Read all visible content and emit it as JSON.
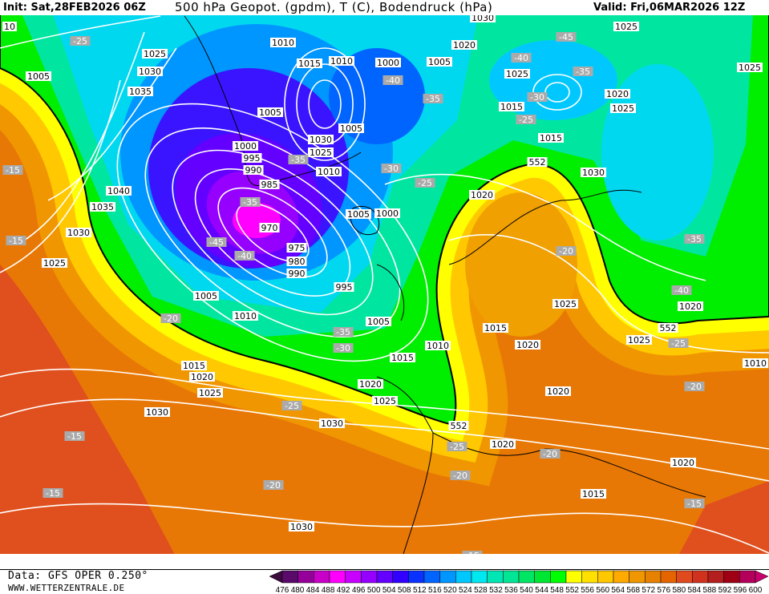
{
  "header": {
    "init": "Init: Sat,28FEB2026 06Z",
    "title": "500 hPa Geopot. (gpdm), T (C), Bodendruck (hPa)",
    "valid": "Valid: Fri,06MAR2026 12Z"
  },
  "footer": {
    "source": "Data: GFS OPER 0.250°",
    "site": "WWW.WETTERZENTRALE.DE"
  },
  "legend": {
    "ticks": [
      "476",
      "480",
      "484",
      "488",
      "492",
      "496",
      "500",
      "504",
      "508",
      "512",
      "516",
      "520",
      "524",
      "528",
      "532",
      "536",
      "540",
      "544",
      "548",
      "552",
      "556",
      "560",
      "564",
      "568",
      "572",
      "576",
      "580",
      "584",
      "588",
      "592",
      "596",
      "600"
    ],
    "colors": [
      "#3c0a3c",
      "#5a0a6a",
      "#96009a",
      "#c800c8",
      "#ff00ff",
      "#c800ff",
      "#9600ff",
      "#6400ff",
      "#3200ff",
      "#0a32ff",
      "#0064ff",
      "#0096ff",
      "#00c8ff",
      "#00e8f0",
      "#00e6b4",
      "#00e696",
      "#00e664",
      "#00e632",
      "#00ff00",
      "#ffff00",
      "#ffe000",
      "#ffc800",
      "#ffaa00",
      "#f09600",
      "#e68200",
      "#e66400",
      "#e04a1e",
      "#d0321e",
      "#b41e1e",
      "#a00014",
      "#b4005a",
      "#c8006e"
    ]
  },
  "map": {
    "colors": {
      "base": "#e87806",
      "sw": "#e0501e",
      "gold": "#ffc800",
      "yellow": "#ffff00",
      "green": "#00ee00",
      "teal": "#00e6a0",
      "cyan": "#00d8f0",
      "lightblue": "#0096ff",
      "blue": "#3a14ff",
      "purple": "#9600ff",
      "magenta": "#ff00ff",
      "isobar": "#ffffff",
      "isotherm": "#aaaaaa"
    },
    "pressure_labels": [
      "10",
      "1025",
      "1030",
      "1005",
      "1035",
      "1040",
      "1035",
      "1030",
      "1025",
      "1005",
      "1010",
      "1015",
      "1020",
      "1025",
      "1030",
      "1030",
      "1020",
      "1025",
      "1015",
      "1010",
      "1005",
      "995",
      "990",
      "980",
      "975",
      "970",
      "985",
      "990",
      "995",
      "1000",
      "1005",
      "1010",
      "1015",
      "1010",
      "1000",
      "1005",
      "1020",
      "1030",
      "1025",
      "1025",
      "1015",
      "1015",
      "1020",
      "1025",
      "1025",
      "1030",
      "1020",
      "1005",
      "1000",
      "1005",
      "1030",
      "1025",
      "1010",
      "1025",
      "1015",
      "1020",
      "1025",
      "1020",
      "1020",
      "1020",
      "1020",
      "1015",
      "1030",
      "1025",
      "1010"
    ],
    "height_labels": [
      "552",
      "552",
      "552"
    ],
    "temp_labels": [
      "-25",
      "-45",
      "-40",
      "-35",
      "-35",
      "-40",
      "-30",
      "-25",
      "-35",
      "-30",
      "-25",
      "-35",
      "-45",
      "-40",
      "-15",
      "-15",
      "-20",
      "-35",
      "-30",
      "-25",
      "-20",
      "-35",
      "-25",
      "-20",
      "-15",
      "-25",
      "-20",
      "-20",
      "-20",
      "-15",
      "-15",
      "-15",
      "-40"
    ]
  }
}
